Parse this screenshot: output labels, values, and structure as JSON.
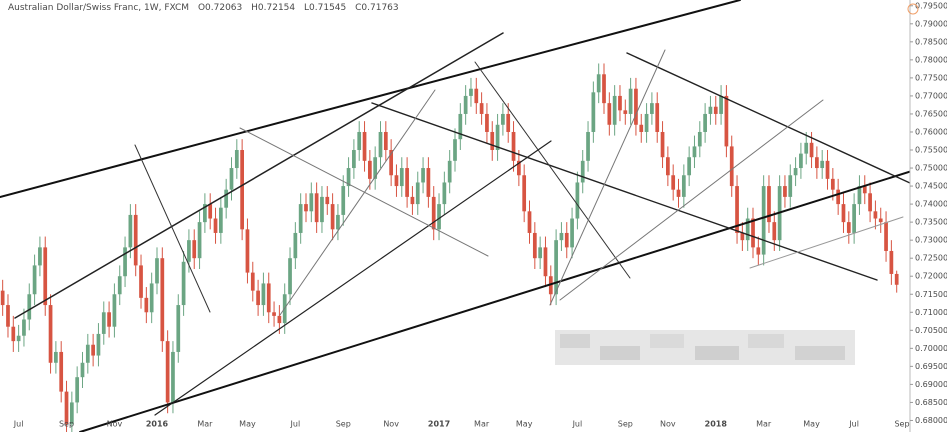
{
  "chart_data": {
    "type": "candlestick",
    "title": "Australian Dollar/Swiss Franc, 1W, FXCM",
    "ohlc_keys": [
      "O",
      "H",
      "L",
      "C"
    ],
    "up_color": "#6ba583",
    "down_color": "#d75442",
    "grid": false,
    "ylim": [
      0.6768,
      0.7966
    ],
    "yticks": [
      {
        "value": 0.68,
        "label": "0.68000"
      },
      {
        "value": 0.685,
        "label": "0.68500"
      },
      {
        "value": 0.69,
        "label": "0.69000"
      },
      {
        "value": 0.695,
        "label": "0.69500"
      },
      {
        "value": 0.7,
        "label": "0.70000"
      },
      {
        "value": 0.705,
        "label": "0.70500"
      },
      {
        "value": 0.71,
        "label": "0.71000"
      },
      {
        "value": 0.715,
        "label": "0.71500"
      },
      {
        "value": 0.72,
        "label": "0.72000"
      },
      {
        "value": 0.725,
        "label": "0.72500"
      },
      {
        "value": 0.73,
        "label": "0.73000"
      },
      {
        "value": 0.735,
        "label": "0.73500"
      },
      {
        "value": 0.74,
        "label": "0.74000"
      },
      {
        "value": 0.745,
        "label": "0.74500"
      },
      {
        "value": 0.75,
        "label": "0.75000"
      },
      {
        "value": 0.755,
        "label": "0.75500"
      },
      {
        "value": 0.76,
        "label": "0.76000"
      },
      {
        "value": 0.765,
        "label": "0.76500"
      },
      {
        "value": 0.77,
        "label": "0.77000"
      },
      {
        "value": 0.775,
        "label": "0.77500"
      },
      {
        "value": 0.78,
        "label": "0.78000"
      },
      {
        "value": 0.785,
        "label": "0.78500"
      },
      {
        "value": 0.79,
        "label": "0.79000"
      },
      {
        "value": 0.795,
        "label": "0.79500"
      }
    ],
    "categories": [
      null,
      null,
      null,
      "Jul",
      null,
      null,
      null,
      null,
      null,
      null,
      null,
      null,
      "Sep",
      null,
      null,
      null,
      null,
      null,
      null,
      null,
      null,
      "Nov",
      null,
      null,
      null,
      null,
      null,
      null,
      null,
      "2016",
      null,
      null,
      null,
      null,
      null,
      null,
      null,
      null,
      "Mar",
      null,
      null,
      null,
      null,
      null,
      null,
      null,
      "May",
      null,
      null,
      null,
      null,
      null,
      null,
      null,
      null,
      "Jul",
      null,
      null,
      null,
      null,
      null,
      null,
      null,
      null,
      "Sep",
      null,
      null,
      null,
      null,
      null,
      null,
      null,
      null,
      "Nov",
      null,
      null,
      null,
      null,
      null,
      null,
      null,
      null,
      "2017",
      null,
      null,
      null,
      null,
      null,
      null,
      null,
      "Mar",
      null,
      null,
      null,
      null,
      null,
      null,
      null,
      "May",
      null,
      null,
      null,
      null,
      null,
      null,
      null,
      null,
      null,
      "Jul",
      null,
      null,
      null,
      null,
      null,
      null,
      null,
      null,
      "Sep",
      null,
      null,
      null,
      null,
      null,
      null,
      null,
      "Nov",
      null,
      null,
      null,
      null,
      null,
      null,
      null,
      null,
      "2018",
      null,
      null,
      null,
      null,
      null,
      null,
      null,
      null,
      "Mar",
      null,
      null,
      null,
      null,
      null,
      null,
      null,
      null,
      "May",
      null,
      null,
      null,
      null,
      null,
      null,
      null,
      "Jul",
      null,
      null,
      null,
      null,
      null,
      null,
      null,
      null,
      "Sep",
      null
    ],
    "open": [
      0.716,
      0.712,
      0.706,
      0.702,
      0.7035,
      0.708,
      0.715,
      0.723,
      0.728,
      0.712,
      0.696,
      0.699,
      0.688,
      0.679,
      0.685,
      0.692,
      0.696,
      0.701,
      0.698,
      0.704,
      0.71,
      0.706,
      0.715,
      0.72,
      0.728,
      0.737,
      0.723,
      0.714,
      0.71,
      0.718,
      0.725,
      0.702,
      0.685,
      0.699,
      0.712,
      0.724,
      0.73,
      0.725,
      0.735,
      0.74,
      0.736,
      0.732,
      0.739,
      0.744,
      0.75,
      0.755,
      0.733,
      0.721,
      0.716,
      0.712,
      0.718,
      0.71,
      0.709,
      0.707,
      0.715,
      0.725,
      0.732,
      0.74,
      0.738,
      0.743,
      0.735,
      0.742,
      0.74,
      0.733,
      0.737,
      0.745,
      0.75,
      0.755,
      0.76,
      0.752,
      0.747,
      0.753,
      0.76,
      0.755,
      0.748,
      0.745,
      0.75,
      0.742,
      0.74,
      0.746,
      0.75,
      0.742,
      0.733,
      0.74,
      0.746,
      0.752,
      0.758,
      0.765,
      0.77,
      0.772,
      0.768,
      0.765,
      0.76,
      0.755,
      0.762,
      0.765,
      0.76,
      0.752,
      0.748,
      0.738,
      0.732,
      0.725,
      0.728,
      0.72,
      0.715,
      0.73,
      0.732,
      0.728,
      0.736,
      0.746,
      0.752,
      0.76,
      0.771,
      0.776,
      0.768,
      0.762,
      0.77,
      0.766,
      0.765,
      0.772,
      0.762,
      0.76,
      0.765,
      0.768,
      0.76,
      0.753,
      0.748,
      0.744,
      0.742,
      0.748,
      0.753,
      0.756,
      0.76,
      0.765,
      0.767,
      0.765,
      0.77,
      0.756,
      0.745,
      0.732,
      0.73,
      0.736,
      0.728,
      0.726,
      0.745,
      0.735,
      0.73,
      0.745,
      0.742,
      0.748,
      0.75,
      0.754,
      0.757,
      0.753,
      0.75,
      0.752,
      0.747,
      0.744,
      0.74,
      0.735,
      0.732,
      0.74,
      0.745,
      0.743,
      0.738,
      0.736,
      0.735,
      0.727,
      0.72063,
      null,
      null
    ],
    "high": [
      0.719,
      0.715,
      0.709,
      0.7065,
      0.711,
      0.718,
      0.726,
      0.731,
      0.731,
      0.715,
      0.702,
      0.702,
      0.691,
      0.688,
      0.695,
      0.699,
      0.704,
      0.704,
      0.707,
      0.713,
      0.713,
      0.718,
      0.723,
      0.731,
      0.74,
      0.74,
      0.726,
      0.717,
      0.721,
      0.728,
      0.728,
      0.705,
      0.702,
      0.715,
      0.727,
      0.733,
      0.733,
      0.738,
      0.743,
      0.743,
      0.739,
      0.742,
      0.747,
      0.753,
      0.758,
      0.758,
      0.736,
      0.724,
      0.719,
      0.721,
      0.721,
      0.713,
      0.712,
      0.718,
      0.728,
      0.735,
      0.743,
      0.743,
      0.746,
      0.746,
      0.745,
      0.745,
      0.743,
      0.74,
      0.748,
      0.753,
      0.758,
      0.763,
      0.763,
      0.755,
      0.756,
      0.763,
      0.763,
      0.758,
      0.751,
      0.753,
      0.753,
      0.745,
      0.749,
      0.753,
      0.753,
      0.745,
      0.743,
      0.749,
      0.755,
      0.761,
      0.768,
      0.773,
      0.775,
      0.775,
      0.771,
      0.768,
      0.763,
      0.765,
      0.768,
      0.768,
      0.763,
      0.755,
      0.751,
      0.741,
      0.735,
      0.731,
      0.731,
      0.723,
      0.733,
      0.735,
      0.735,
      0.739,
      0.749,
      0.755,
      0.763,
      0.774,
      0.779,
      0.779,
      0.771,
      0.773,
      0.773,
      0.769,
      0.775,
      0.775,
      0.765,
      0.768,
      0.771,
      0.771,
      0.763,
      0.756,
      0.751,
      0.747,
      0.751,
      0.756,
      0.759,
      0.763,
      0.768,
      0.77,
      0.77,
      0.773,
      0.773,
      0.759,
      0.748,
      0.735,
      0.739,
      0.739,
      0.731,
      0.748,
      0.748,
      0.738,
      0.748,
      0.748,
      0.751,
      0.753,
      0.757,
      0.76,
      0.76,
      0.756,
      0.755,
      0.755,
      0.75,
      0.747,
      0.743,
      0.738,
      0.743,
      0.748,
      0.748,
      0.746,
      0.741,
      0.739,
      0.738,
      0.73,
      0.72154,
      null,
      null
    ],
    "low": [
      0.709,
      0.703,
      0.699,
      0.699,
      0.7005,
      0.705,
      0.712,
      0.72,
      0.709,
      0.693,
      0.693,
      0.685,
      0.676,
      0.676,
      0.682,
      0.689,
      0.693,
      0.695,
      0.695,
      0.701,
      0.703,
      0.703,
      0.712,
      0.717,
      0.725,
      0.72,
      0.711,
      0.707,
      0.707,
      0.715,
      0.699,
      0.682,
      0.682,
      0.696,
      0.709,
      0.721,
      0.722,
      0.722,
      0.732,
      0.733,
      0.729,
      0.729,
      0.736,
      0.741,
      0.747,
      0.73,
      0.718,
      0.713,
      0.709,
      0.709,
      0.707,
      0.706,
      0.704,
      0.704,
      0.712,
      0.722,
      0.729,
      0.735,
      0.735,
      0.732,
      0.732,
      0.737,
      0.73,
      0.73,
      0.734,
      0.742,
      0.747,
      0.752,
      0.749,
      0.744,
      0.744,
      0.75,
      0.752,
      0.745,
      0.742,
      0.742,
      0.739,
      0.737,
      0.737,
      0.743,
      0.739,
      0.73,
      0.73,
      0.737,
      0.743,
      0.749,
      0.755,
      0.762,
      0.767,
      0.765,
      0.762,
      0.757,
      0.752,
      0.752,
      0.759,
      0.757,
      0.749,
      0.745,
      0.735,
      0.729,
      0.722,
      0.722,
      0.717,
      0.712,
      0.712,
      0.727,
      0.725,
      0.725,
      0.733,
      0.743,
      0.749,
      0.757,
      0.768,
      0.765,
      0.759,
      0.759,
      0.763,
      0.762,
      0.762,
      0.759,
      0.757,
      0.757,
      0.762,
      0.757,
      0.75,
      0.745,
      0.741,
      0.739,
      0.739,
      0.745,
      0.75,
      0.753,
      0.757,
      0.762,
      0.762,
      0.762,
      0.753,
      0.742,
      0.729,
      0.727,
      0.727,
      0.725,
      0.723,
      0.723,
      0.732,
      0.727,
      0.727,
      0.739,
      0.739,
      0.745,
      0.747,
      0.751,
      0.75,
      0.747,
      0.747,
      0.744,
      0.741,
      0.737,
      0.732,
      0.729,
      0.729,
      0.737,
      0.74,
      0.735,
      0.733,
      0.732,
      0.724,
      0.7176,
      0.71545,
      null,
      null
    ],
    "close": [
      0.712,
      0.706,
      0.702,
      0.7035,
      0.708,
      0.715,
      0.723,
      0.728,
      0.712,
      0.696,
      0.699,
      0.688,
      0.679,
      0.685,
      0.692,
      0.696,
      0.701,
      0.698,
      0.704,
      0.71,
      0.706,
      0.715,
      0.72,
      0.728,
      0.737,
      0.723,
      0.714,
      0.71,
      0.718,
      0.725,
      0.702,
      0.685,
      0.699,
      0.712,
      0.724,
      0.73,
      0.725,
      0.735,
      0.74,
      0.736,
      0.732,
      0.739,
      0.744,
      0.75,
      0.755,
      0.733,
      0.721,
      0.716,
      0.712,
      0.718,
      0.71,
      0.709,
      0.707,
      0.715,
      0.725,
      0.732,
      0.74,
      0.738,
      0.743,
      0.735,
      0.742,
      0.74,
      0.733,
      0.737,
      0.745,
      0.75,
      0.755,
      0.76,
      0.752,
      0.747,
      0.753,
      0.76,
      0.755,
      0.748,
      0.745,
      0.75,
      0.742,
      0.74,
      0.746,
      0.75,
      0.742,
      0.733,
      0.74,
      0.746,
      0.752,
      0.758,
      0.765,
      0.77,
      0.772,
      0.768,
      0.765,
      0.76,
      0.755,
      0.762,
      0.765,
      0.76,
      0.752,
      0.748,
      0.738,
      0.732,
      0.725,
      0.728,
      0.72,
      0.715,
      0.73,
      0.732,
      0.728,
      0.736,
      0.746,
      0.752,
      0.76,
      0.771,
      0.776,
      0.768,
      0.762,
      0.77,
      0.766,
      0.765,
      0.772,
      0.762,
      0.76,
      0.765,
      0.768,
      0.76,
      0.753,
      0.748,
      0.744,
      0.742,
      0.748,
      0.753,
      0.756,
      0.76,
      0.765,
      0.767,
      0.765,
      0.77,
      0.756,
      0.745,
      0.732,
      0.73,
      0.736,
      0.728,
      0.726,
      0.745,
      0.735,
      0.73,
      0.745,
      0.742,
      0.748,
      0.75,
      0.754,
      0.757,
      0.753,
      0.75,
      0.752,
      0.747,
      0.744,
      0.74,
      0.735,
      0.732,
      0.74,
      0.745,
      0.743,
      0.738,
      0.736,
      0.735,
      0.727,
      0.72063,
      0.71763,
      null,
      null
    ]
  }
}
